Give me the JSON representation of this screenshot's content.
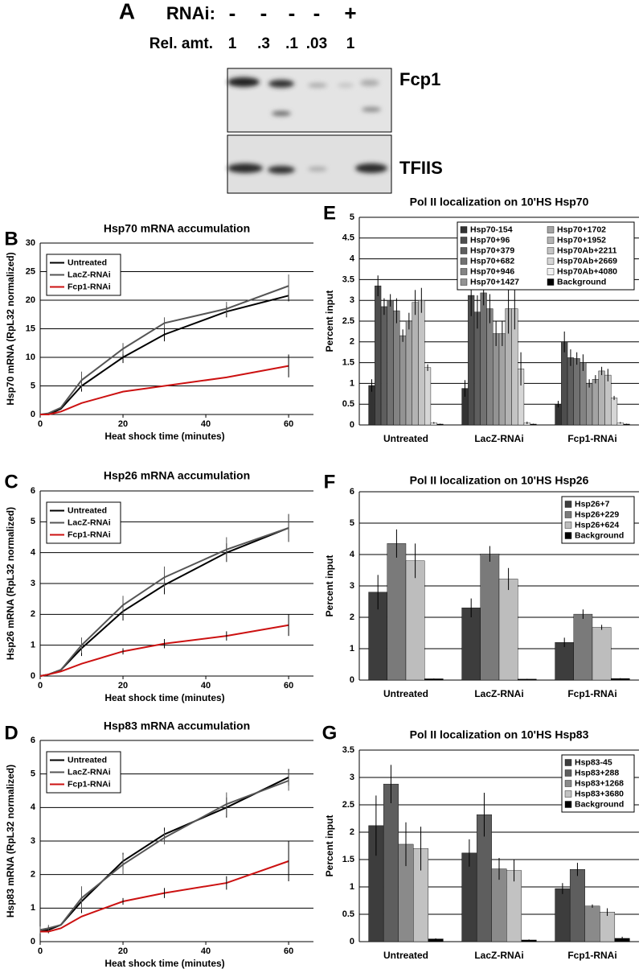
{
  "blot": {
    "panel_label": "A",
    "rows": [
      {
        "label": "RNAi:",
        "cells": [
          "-",
          "-",
          "-",
          "-",
          "+"
        ]
      },
      {
        "label": "Rel. amt.",
        "cells": [
          "1",
          ".3",
          ".1",
          ".03",
          "1"
        ]
      }
    ],
    "bands": [
      "Fcp1",
      "TFIIS"
    ]
  },
  "chart_data": [
    {
      "type": "line",
      "panel_label": "B",
      "title": "Hsp70 mRNA accumulation",
      "xlabel": "Heat shock time (minutes)",
      "ylabel": "Hsp70 mRNA (RpL32 normalized)",
      "x": [
        0,
        2,
        5,
        10,
        20,
        30,
        45,
        60
      ],
      "xlim": [
        0,
        66
      ],
      "xticks": [
        0,
        20,
        40,
        60
      ],
      "ylim": [
        0,
        30
      ],
      "yticks": [
        0,
        5,
        10,
        15,
        20,
        25,
        30
      ],
      "grid": true,
      "legend": "upper left",
      "series": [
        {
          "name": "Untreated",
          "color": "#000000",
          "values": [
            0,
            0,
            1,
            5,
            10,
            14,
            18,
            20.8
          ],
          "errors": [
            null,
            null,
            null,
            1,
            1,
            1.2,
            1,
            1
          ]
        },
        {
          "name": "LacZ-RNAi",
          "color": "#555555",
          "values": [
            0,
            0.2,
            1.2,
            6,
            11.5,
            16,
            18.5,
            22.5
          ],
          "errors": [
            null,
            null,
            null,
            1.5,
            1,
            1,
            1.2,
            2
          ]
        },
        {
          "name": "Fcp1-RNAi",
          "color": "#cc1111",
          "values": [
            0,
            0,
            0.5,
            2,
            4,
            5,
            6.5,
            8.5
          ],
          "errors": [
            null,
            null,
            null,
            null,
            null,
            null,
            null,
            2
          ]
        }
      ]
    },
    {
      "type": "line",
      "panel_label": "C",
      "title": "Hsp26 mRNA accumulation",
      "xlabel": "Heat shock time (minutes)",
      "ylabel": "Hsp26 mRNA (RpL32 normalized)",
      "x": [
        0,
        2,
        5,
        10,
        20,
        30,
        45,
        60
      ],
      "xlim": [
        0,
        66
      ],
      "xticks": [
        0,
        20,
        40,
        60
      ],
      "ylim": [
        0,
        6
      ],
      "yticks": [
        0,
        1,
        2,
        3,
        4,
        5,
        6
      ],
      "grid": true,
      "legend": "upper left",
      "series": [
        {
          "name": "Untreated",
          "color": "#000000",
          "values": [
            0,
            0.05,
            0.2,
            0.9,
            2.1,
            2.95,
            4.0,
            4.8
          ],
          "errors": [
            null,
            null,
            null,
            0.25,
            0.3,
            0.3,
            0.3,
            0.45
          ]
        },
        {
          "name": "LacZ-RNAi",
          "color": "#555555",
          "values": [
            0,
            0.05,
            0.2,
            1.0,
            2.3,
            3.2,
            4.1,
            4.8
          ],
          "errors": [
            null,
            null,
            null,
            0.25,
            0.3,
            0.35,
            0.4,
            0.45
          ]
        },
        {
          "name": "Fcp1-RNAi",
          "color": "#cc1111",
          "values": [
            0,
            0.05,
            0.15,
            0.4,
            0.8,
            1.05,
            1.3,
            1.65
          ],
          "errors": [
            null,
            null,
            null,
            null,
            0.1,
            0.15,
            0.15,
            0.35
          ]
        }
      ]
    },
    {
      "type": "line",
      "panel_label": "D",
      "title": "Hsp83 mRNA accumulation",
      "xlabel": "Heat shock time (minutes)",
      "ylabel": "Hsp83 mRNA (RpL32 normalized)",
      "x": [
        0,
        2,
        5,
        10,
        20,
        30,
        45,
        60
      ],
      "xlim": [
        0,
        66
      ],
      "xticks": [
        0,
        20,
        40,
        60
      ],
      "ylim": [
        0,
        6
      ],
      "yticks": [
        0,
        1,
        2,
        3,
        4,
        5,
        6
      ],
      "grid": true,
      "legend": "upper left",
      "series": [
        {
          "name": "Untreated",
          "color": "#000000",
          "values": [
            0.3,
            0.35,
            0.5,
            1.2,
            2.4,
            3.2,
            4.0,
            4.9
          ],
          "errors": [
            0.1,
            0.1,
            null,
            0.35,
            0.25,
            0.2,
            0.3,
            0.25
          ]
        },
        {
          "name": "LacZ-RNAi",
          "color": "#555555",
          "values": [
            0.35,
            0.4,
            0.5,
            1.3,
            2.3,
            3.1,
            4.1,
            4.8
          ],
          "errors": [
            0.1,
            0.1,
            null,
            0.35,
            0.3,
            0.2,
            0.35,
            0.3
          ]
        },
        {
          "name": "Fcp1-RNAi",
          "color": "#cc1111",
          "values": [
            0.3,
            0.3,
            0.4,
            0.75,
            1.2,
            1.45,
            1.75,
            2.4
          ],
          "errors": [
            null,
            null,
            null,
            null,
            0.1,
            0.15,
            0.2,
            0.6
          ]
        }
      ]
    },
    {
      "type": "bar",
      "panel_label": "E",
      "title": "Pol II localization on 10'HS Hsp70",
      "ylabel": "Percent input",
      "categories": [
        "Untreated",
        "LacZ-RNAi",
        "Fcp1-RNAi"
      ],
      "ylim": [
        0,
        5
      ],
      "yticks": [
        0,
        0.5,
        1,
        1.5,
        2,
        2.5,
        3,
        3.5,
        4,
        4.5,
        5
      ],
      "grid": true,
      "legend": "upper right",
      "legend_columns": 2,
      "series": [
        {
          "name": "Hsp70-154",
          "color": "#333333",
          "values": [
            0.95,
            0.88,
            0.5
          ],
          "errors": [
            0.15,
            0.2,
            0.08
          ]
        },
        {
          "name": "Hsp70+96",
          "color": "#4d4d4d",
          "values": [
            3.35,
            3.12,
            2.0
          ],
          "errors": [
            0.25,
            0.5,
            0.25
          ]
        },
        {
          "name": "Hsp70+379",
          "color": "#5e5e5e",
          "values": [
            2.85,
            2.72,
            1.62
          ],
          "errors": [
            0.2,
            0.4,
            0.2
          ]
        },
        {
          "name": "Hsp70+682",
          "color": "#717171",
          "values": [
            3.0,
            3.18,
            1.6
          ],
          "errors": [
            0.15,
            0.3,
            0.15
          ]
        },
        {
          "name": "Hsp70+946",
          "color": "#838383",
          "values": [
            2.75,
            2.8,
            1.5
          ],
          "errors": [
            0.3,
            0.35,
            0.2
          ]
        },
        {
          "name": "Hsp70+1427",
          "color": "#939393",
          "values": [
            2.15,
            2.2,
            1.0
          ],
          "errors": [
            0.15,
            0.3,
            0.1
          ]
        },
        {
          "name": "Hsp70+1702",
          "color": "#a3a3a3",
          "values": [
            2.5,
            2.2,
            1.1
          ],
          "errors": [
            0.2,
            0.3,
            0.1
          ]
        },
        {
          "name": "Hsp70+1952",
          "color": "#b3b3b3",
          "values": [
            2.95,
            2.8,
            1.3
          ],
          "errors": [
            0.3,
            0.6,
            0.1
          ]
        },
        {
          "name": "Hsp70Ab+2211",
          "color": "#c4c4c4",
          "values": [
            3.0,
            2.8,
            1.2
          ],
          "errors": [
            0.3,
            0.5,
            0.15
          ]
        },
        {
          "name": "Hsp70Ab+2669",
          "color": "#d6d6d6",
          "values": [
            1.38,
            1.35,
            0.65
          ],
          "errors": [
            0.08,
            0.4,
            0.05
          ]
        },
        {
          "name": "Hsp70Ab+4080",
          "color": "#f2f2f2",
          "values": [
            0.05,
            0.05,
            0.05
          ],
          "errors": [
            0.02,
            0.03,
            0.02
          ]
        },
        {
          "name": "Background",
          "color": "#000000",
          "values": [
            0.02,
            0.02,
            0.02
          ],
          "errors": [
            0.01,
            0.01,
            0.01
          ]
        }
      ]
    },
    {
      "type": "bar",
      "panel_label": "F",
      "title": "Pol II localization on 10'HS Hsp26",
      "ylabel": "Percent input",
      "categories": [
        "Untreated",
        "LacZ-RNAi",
        "Fcp1-RNAi"
      ],
      "ylim": [
        0,
        6
      ],
      "yticks": [
        0,
        1,
        2,
        3,
        4,
        5,
        6
      ],
      "grid": true,
      "legend": "upper right",
      "legend_columns": 1,
      "series": [
        {
          "name": "Hsp26+7",
          "color": "#3d3d3d",
          "values": [
            2.8,
            2.3,
            1.2
          ],
          "errors": [
            0.55,
            0.3,
            0.15
          ]
        },
        {
          "name": "Hsp26+229",
          "color": "#7a7a7a",
          "values": [
            4.35,
            4.02,
            2.1
          ],
          "errors": [
            0.45,
            0.25,
            0.15
          ]
        },
        {
          "name": "Hsp26+624",
          "color": "#bdbdbd",
          "values": [
            3.8,
            3.22,
            1.68
          ],
          "errors": [
            0.55,
            0.35,
            0.08
          ]
        },
        {
          "name": "Background",
          "color": "#000000",
          "values": [
            0.04,
            0.03,
            0.05
          ],
          "errors": [
            0.01,
            0.01,
            0.01
          ]
        }
      ]
    },
    {
      "type": "bar",
      "panel_label": "G",
      "title": "Pol II localization on 10'HS Hsp83",
      "ylabel": "Percent input",
      "categories": [
        "Untreated",
        "LacZ-RNAi",
        "Fcp1-RNAi"
      ],
      "ylim": [
        0,
        3.5
      ],
      "yticks": [
        0,
        0.5,
        1,
        1.5,
        2,
        2.5,
        3,
        3.5
      ],
      "grid": true,
      "legend": "upper right",
      "legend_columns": 1,
      "series": [
        {
          "name": "Hsp83-45",
          "color": "#3d3d3d",
          "values": [
            2.12,
            1.62,
            0.97
          ],
          "errors": [
            0.55,
            0.25,
            0.1
          ]
        },
        {
          "name": "Hsp83+288",
          "color": "#5e5e5e",
          "values": [
            2.88,
            2.32,
            1.32
          ],
          "errors": [
            0.35,
            0.4,
            0.12
          ]
        },
        {
          "name": "Hsp83+1268",
          "color": "#8a8a8a",
          "values": [
            1.78,
            1.33,
            0.65
          ],
          "errors": [
            0.4,
            0.2,
            0.03
          ]
        },
        {
          "name": "Hsp83+3680",
          "color": "#c2c2c2",
          "values": [
            1.7,
            1.3,
            0.54
          ],
          "errors": [
            0.4,
            0.2,
            0.07
          ]
        },
        {
          "name": "Background",
          "color": "#000000",
          "values": [
            0.05,
            0.03,
            0.06
          ],
          "errors": [
            0.01,
            0.01,
            0.03
          ]
        }
      ]
    }
  ]
}
